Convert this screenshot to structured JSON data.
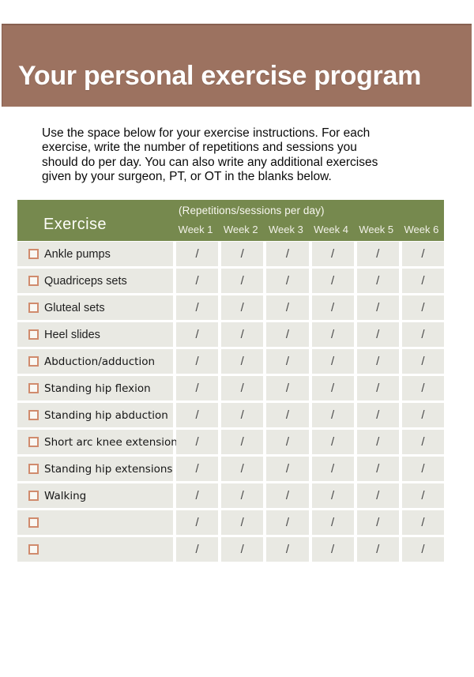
{
  "colors": {
    "banner_bg": "#9c7260",
    "banner_edge": "#876050",
    "header_bg": "#76894e",
    "row_bg": "#e9e9e3",
    "checkbox_border": "#d08b6d",
    "slash_color": "#4a4a4a",
    "title_color": "#ffffff"
  },
  "banner": {
    "title": "Your personal exercise program"
  },
  "intro": {
    "lines": [
      "Use the space below for your exercise instructions. For each",
      "exercise, write the number of repetitions and sessions you",
      "should do per day. You can also write any additional exercises",
      "given by your surgeon, PT, or OT in the blanks below."
    ]
  },
  "table": {
    "header": {
      "exercise_label": "Exercise",
      "caption": "(Repetitions/sessions per day)",
      "week_labels": [
        "Week 1",
        "Week 2",
        "Week 3",
        "Week 4",
        "Week 5",
        "Week 6"
      ]
    },
    "cell_value": "/",
    "rows": [
      {
        "label": "Ankle pumps",
        "checked": false,
        "alt_font": false
      },
      {
        "label": "Quadriceps sets",
        "checked": false,
        "alt_font": false
      },
      {
        "label": "Gluteal sets",
        "checked": false,
        "alt_font": false
      },
      {
        "label": "Heel slides",
        "checked": false,
        "alt_font": false
      },
      {
        "label": "Abduction/adduction",
        "checked": false,
        "alt_font": true
      },
      {
        "label": "Standing hip flexion",
        "checked": false,
        "alt_font": true
      },
      {
        "label": "Standing hip abduction",
        "checked": false,
        "alt_font": true
      },
      {
        "label": "Short arc knee extensions",
        "checked": false,
        "alt_font": true
      },
      {
        "label": "Standing hip extensions",
        "checked": false,
        "alt_font": true
      },
      {
        "label": "Walking",
        "checked": false,
        "alt_font": true
      },
      {
        "label": "",
        "checked": false,
        "alt_font": false
      },
      {
        "label": "",
        "checked": false,
        "alt_font": false
      }
    ]
  }
}
